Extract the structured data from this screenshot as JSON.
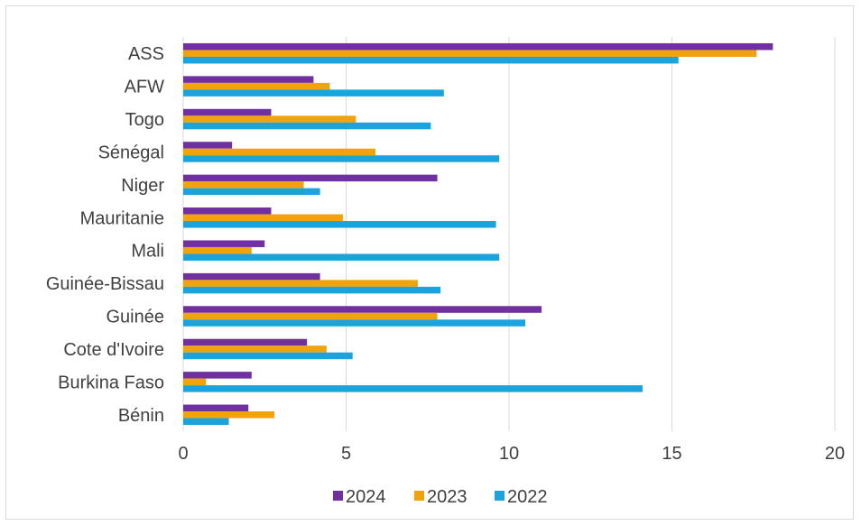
{
  "chart_data": {
    "type": "bar",
    "orientation": "horizontal",
    "title": "",
    "xlabel": "",
    "ylabel": "",
    "categories": [
      "ASS",
      "AFW",
      "Togo",
      "Sénégal",
      "Niger",
      "Mauritanie",
      "Mali",
      "Guinée-Bissau",
      "Guinée",
      "Cote d'Ivoire",
      "Burkina Faso",
      "Bénin"
    ],
    "series": [
      {
        "name": "2024",
        "color": "#7030a0",
        "values": [
          18.1,
          4.0,
          2.7,
          1.5,
          7.8,
          2.7,
          2.5,
          4.2,
          11.0,
          3.8,
          2.1,
          2.0
        ]
      },
      {
        "name": "2023",
        "color": "#f0a30a",
        "values": [
          17.6,
          4.5,
          5.3,
          5.9,
          3.7,
          4.9,
          2.1,
          7.2,
          7.8,
          4.4,
          0.7,
          2.8
        ]
      },
      {
        "name": "2022",
        "color": "#1aa3dc",
        "values": [
          15.2,
          8.0,
          7.6,
          9.7,
          4.2,
          9.6,
          9.7,
          7.9,
          10.5,
          5.2,
          14.1,
          1.4
        ]
      }
    ],
    "xlim": [
      0,
      20
    ],
    "xticks": [
      "0",
      "5",
      "10",
      "15",
      "20"
    ],
    "grid": true,
    "legend": "bottom"
  }
}
